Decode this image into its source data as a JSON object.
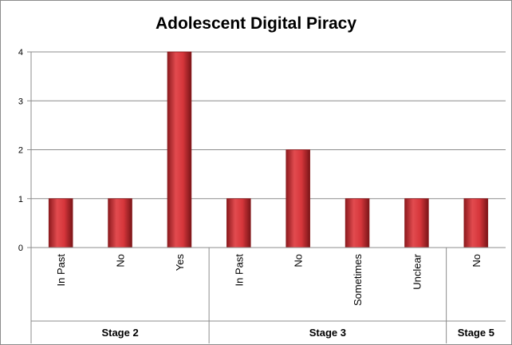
{
  "chart_data": {
    "type": "bar",
    "title": "Adolescent Digital Piracy",
    "xlabel": "",
    "ylabel": "",
    "ylim": [
      0,
      4
    ],
    "y_ticks": [
      0,
      1,
      2,
      3,
      4
    ],
    "grid": true,
    "legend": "none",
    "bar_color": "#c0282d",
    "groups": [
      {
        "name": "Stage 2",
        "categories": [
          "In Past",
          "No",
          "Yes"
        ],
        "values": [
          1,
          1,
          4
        ]
      },
      {
        "name": "Stage 3",
        "categories": [
          "In Past",
          "No",
          "Sometimes",
          "Unclear"
        ],
        "values": [
          1,
          2,
          1,
          1
        ]
      },
      {
        "name": "Stage 5",
        "categories": [
          "No"
        ],
        "values": [
          1
        ]
      }
    ]
  }
}
